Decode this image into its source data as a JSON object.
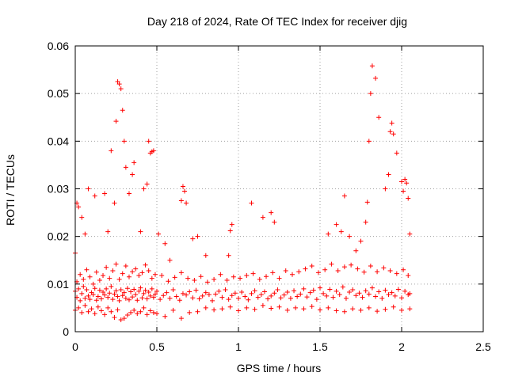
{
  "chart_data": {
    "type": "scatter",
    "title": "Day 218 of 2024, Rate Of TEC Index for receiver djig",
    "xlabel": "GPS time / hours",
    "ylabel": "ROTI / TECUs",
    "xlim": [
      0,
      2.5
    ],
    "ylim": [
      0,
      0.06
    ],
    "xticks": [
      0,
      0.5,
      1,
      1.5,
      2,
      2.5
    ],
    "xtick_labels": [
      "0",
      "0.5",
      "1",
      "1.5",
      "2",
      "2.5"
    ],
    "yticks": [
      0,
      0.01,
      0.02,
      0.03,
      0.04,
      0.05,
      0.06
    ],
    "ytick_labels": [
      "0",
      "0.01",
      "0.02",
      "0.03",
      "0.04",
      "0.05",
      "0.06"
    ],
    "grid": true,
    "marker": "+",
    "color": "#ff0000",
    "series": [
      {
        "name": "ROTI",
        "x": [
          0.0,
          0.01,
          0.02,
          0.03,
          0.04,
          0.05,
          0.06,
          0.07,
          0.08,
          0.09,
          0.1,
          0.11,
          0.12,
          0.13,
          0.14,
          0.15,
          0.16,
          0.17,
          0.18,
          0.19,
          0.2,
          0.21,
          0.22,
          0.23,
          0.24,
          0.25,
          0.26,
          0.27,
          0.28,
          0.29,
          0.3,
          0.31,
          0.32,
          0.33,
          0.34,
          0.35,
          0.36,
          0.37,
          0.38,
          0.39,
          0.4,
          0.41,
          0.42,
          0.43,
          0.44,
          0.45,
          0.46,
          0.47,
          0.48,
          0.49,
          0.5,
          0.52,
          0.54,
          0.56,
          0.58,
          0.6,
          0.62,
          0.64,
          0.66,
          0.68,
          0.7,
          0.72,
          0.74,
          0.76,
          0.78,
          0.8,
          0.82,
          0.84,
          0.86,
          0.88,
          0.9,
          0.92,
          0.94,
          0.96,
          0.98,
          1.0,
          1.02,
          1.04,
          1.06,
          1.08,
          1.1,
          1.12,
          1.14,
          1.16,
          1.18,
          1.2,
          1.22,
          1.24,
          1.26,
          1.28,
          1.3,
          1.32,
          1.34,
          1.36,
          1.38,
          1.4,
          1.42,
          1.44,
          1.46,
          1.48,
          1.5,
          1.52,
          1.54,
          1.56,
          1.58,
          1.6,
          1.62,
          1.64,
          1.66,
          1.68,
          1.7,
          1.72,
          1.74,
          1.76,
          1.78,
          1.8,
          1.82,
          1.84,
          1.86,
          1.88,
          1.9,
          1.92,
          1.94,
          1.96,
          1.98,
          2.0,
          2.02,
          2.04,
          2.05,
          0.0,
          0.02,
          0.04,
          0.06,
          0.08,
          0.1,
          0.12,
          0.14,
          0.16,
          0.18,
          0.2,
          0.22,
          0.24,
          0.26,
          0.28,
          0.3,
          0.32,
          0.34,
          0.36,
          0.38,
          0.4,
          0.42,
          0.44,
          0.46,
          0.48,
          0.5,
          0.55,
          0.6,
          0.65,
          0.7,
          0.75,
          0.8,
          0.85,
          0.9,
          0.95,
          1.0,
          1.05,
          1.1,
          1.15,
          1.2,
          1.25,
          1.3,
          1.35,
          1.4,
          1.45,
          1.5,
          1.55,
          1.6,
          1.65,
          1.7,
          1.75,
          1.8,
          1.85,
          1.9,
          1.95,
          2.0,
          2.05,
          0.01,
          0.03,
          0.05,
          0.07,
          0.09,
          0.11,
          0.13,
          0.15,
          0.17,
          0.19,
          0.21,
          0.23,
          0.25,
          0.27,
          0.29,
          0.31,
          0.33,
          0.35,
          0.37,
          0.39,
          0.41,
          0.43,
          0.45,
          0.47,
          0.49,
          0.53,
          0.57,
          0.61,
          0.65,
          0.69,
          0.73,
          0.77,
          0.81,
          0.85,
          0.89,
          0.93,
          0.97,
          1.01,
          1.05,
          1.09,
          1.13,
          1.17,
          1.21,
          1.25,
          1.29,
          1.33,
          1.37,
          1.41,
          1.45,
          1.49,
          1.53,
          1.57,
          1.61,
          1.65,
          1.69,
          1.73,
          1.77,
          1.81,
          1.85,
          1.89,
          1.93,
          1.97,
          2.01,
          2.04,
          0.0,
          0.01,
          0.02,
          0.04,
          0.06,
          0.08,
          0.12,
          0.18,
          0.2,
          0.22,
          0.24,
          0.25,
          0.26,
          0.27,
          0.28,
          0.29,
          0.3,
          0.31,
          0.33,
          0.35,
          0.36,
          0.4,
          0.42,
          0.44,
          0.45,
          0.46,
          0.47,
          0.48,
          0.51,
          0.55,
          0.58,
          0.65,
          0.66,
          0.67,
          0.68,
          0.72,
          0.75,
          0.8,
          0.94,
          0.95,
          0.96,
          1.08,
          1.15,
          1.2,
          1.22,
          1.55,
          1.6,
          1.63,
          1.65,
          1.68,
          1.72,
          1.75,
          1.78,
          1.79,
          1.8,
          1.81,
          1.82,
          1.84,
          1.86,
          1.9,
          1.92,
          1.93,
          1.94,
          1.95,
          1.97,
          2.0,
          2.01,
          2.02,
          2.03,
          2.04,
          2.05
        ],
        "y": [
          0.0085,
          0.0072,
          0.009,
          0.0065,
          0.008,
          0.0095,
          0.007,
          0.0088,
          0.0075,
          0.0068,
          0.0082,
          0.0078,
          0.0091,
          0.0066,
          0.0074,
          0.0087,
          0.0069,
          0.0083,
          0.0077,
          0.009,
          0.0072,
          0.0081,
          0.0095,
          0.0068,
          0.0079,
          0.0086,
          0.0074,
          0.0065,
          0.0088,
          0.0076,
          0.0082,
          0.007,
          0.0091,
          0.0067,
          0.0084,
          0.0073,
          0.0089,
          0.0078,
          0.0066,
          0.0085,
          0.0092,
          0.0071,
          0.008,
          0.0087,
          0.0069,
          0.0083,
          0.0075,
          0.009,
          0.0072,
          0.0079,
          0.0085,
          0.0068,
          0.0076,
          0.0082,
          0.007,
          0.0088,
          0.0074,
          0.0066,
          0.008,
          0.0077,
          0.0084,
          0.0071,
          0.0087,
          0.0069,
          0.0075,
          0.0082,
          0.0078,
          0.0065,
          0.0079,
          0.0085,
          0.0072,
          0.0088,
          0.0068,
          0.0076,
          0.0081,
          0.007,
          0.0083,
          0.0074,
          0.0067,
          0.008,
          0.0086,
          0.0072,
          0.0078,
          0.0084,
          0.0069,
          0.0075,
          0.0081,
          0.0088,
          0.0071,
          0.0077,
          0.0083,
          0.007,
          0.0086,
          0.0074,
          0.0079,
          0.009,
          0.0073,
          0.0082,
          0.0087,
          0.0068,
          0.0092,
          0.008,
          0.0075,
          0.0089,
          0.0072,
          0.0085,
          0.0078,
          0.0094,
          0.007,
          0.0083,
          0.0088,
          0.0076,
          0.0081,
          0.0072,
          0.0086,
          0.0079,
          0.0092,
          0.0074,
          0.0084,
          0.007,
          0.0087,
          0.0078,
          0.0082,
          0.0075,
          0.0089,
          0.0071,
          0.0085,
          0.0078,
          0.008,
          0.0045,
          0.005,
          0.004,
          0.0055,
          0.0042,
          0.0048,
          0.0038,
          0.0052,
          0.0044,
          0.0036,
          0.005,
          0.0042,
          0.003,
          0.0046,
          0.0025,
          0.0028,
          0.0035,
          0.004,
          0.0045,
          0.0038,
          0.0042,
          0.005,
          0.0036,
          0.0044,
          0.004,
          0.0038,
          0.0032,
          0.0045,
          0.0028,
          0.004,
          0.0042,
          0.005,
          0.0046,
          0.0048,
          0.0052,
          0.0044,
          0.005,
          0.0047,
          0.0055,
          0.0049,
          0.0052,
          0.0045,
          0.005,
          0.0048,
          0.0053,
          0.0046,
          0.005,
          0.0044,
          0.0042,
          0.0048,
          0.0045,
          0.005,
          0.0043,
          0.0047,
          0.0052,
          0.0045,
          0.0048,
          0.0105,
          0.012,
          0.011,
          0.013,
          0.0115,
          0.01,
          0.0125,
          0.0108,
          0.0118,
          0.0135,
          0.0112,
          0.0128,
          0.0142,
          0.011,
          0.0122,
          0.0138,
          0.0115,
          0.0126,
          0.0132,
          0.0118,
          0.0124,
          0.014,
          0.0128,
          0.0112,
          0.012,
          0.0118,
          0.0106,
          0.0114,
          0.0124,
          0.0112,
          0.0108,
          0.0116,
          0.0104,
          0.011,
          0.012,
          0.0108,
          0.0115,
          0.0112,
          0.0118,
          0.0122,
          0.011,
          0.0116,
          0.0124,
          0.0112,
          0.0128,
          0.012,
          0.0126,
          0.0132,
          0.0138,
          0.0124,
          0.013,
          0.0142,
          0.0128,
          0.0136,
          0.014,
          0.0132,
          0.0125,
          0.0138,
          0.0126,
          0.0134,
          0.0128,
          0.0122,
          0.013,
          0.0118,
          0.0165,
          0.027,
          0.0262,
          0.024,
          0.0205,
          0.03,
          0.0285,
          0.029,
          0.021,
          0.038,
          0.027,
          0.0442,
          0.0525,
          0.052,
          0.051,
          0.0465,
          0.04,
          0.0345,
          0.029,
          0.033,
          0.0355,
          0.021,
          0.03,
          0.031,
          0.04,
          0.0375,
          0.0378,
          0.038,
          0.0205,
          0.0185,
          0.015,
          0.0275,
          0.0305,
          0.0295,
          0.027,
          0.0195,
          0.02,
          0.016,
          0.016,
          0.0212,
          0.0225,
          0.027,
          0.024,
          0.025,
          0.023,
          0.0205,
          0.0225,
          0.021,
          0.0285,
          0.02,
          0.017,
          0.019,
          0.023,
          0.0272,
          0.04,
          0.05,
          0.0558,
          0.0532,
          0.045,
          0.03,
          0.033,
          0.042,
          0.0438,
          0.0415,
          0.0375,
          0.0315,
          0.0295,
          0.032,
          0.0312,
          0.028,
          0.0205
        ]
      }
    ]
  }
}
